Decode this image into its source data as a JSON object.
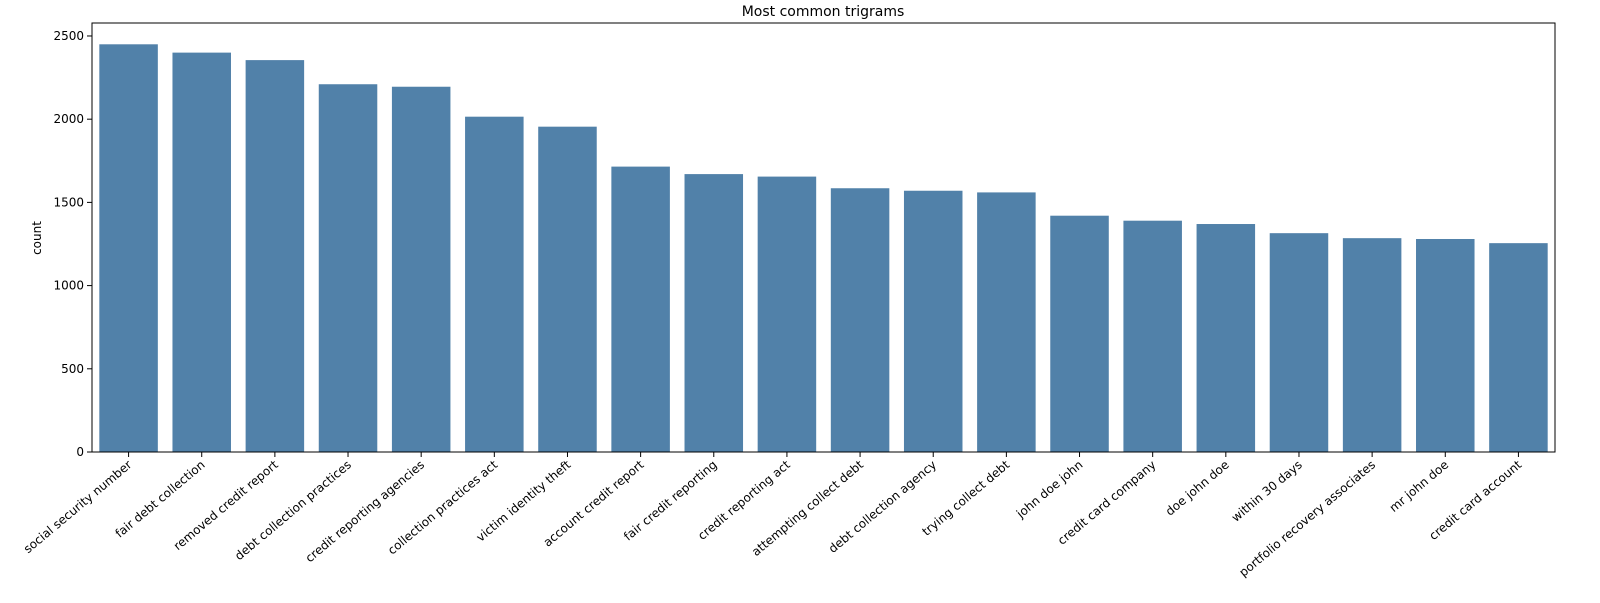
{
  "chart_data": {
    "type": "bar",
    "title": "Most common trigrams",
    "y_label": "count",
    "categories": [
      "social security number",
      "fair debt collection",
      "removed credit report",
      "debt collection practices",
      "credit reporting agencies",
      "collection practices act",
      "victim identity theft",
      "account credit report",
      "fair credit reporting",
      "credit reporting act",
      "attempting collect debt",
      "debt collection agency",
      "trying collect debt",
      "john doe john",
      "credit card company",
      "doe john doe",
      "within 30 days",
      "portfolio recovery associates",
      "mr john doe",
      "credit card account"
    ],
    "values": [
      2450,
      2400,
      2355,
      2210,
      2195,
      2015,
      1955,
      1715,
      1670,
      1655,
      1585,
      1570,
      1560,
      1420,
      1390,
      1370,
      1315,
      1285,
      1280,
      1255
    ],
    "color": "#5181a9",
    "ylim": [
      0,
      2578
    ],
    "yticks": [
      0,
      500,
      1000,
      1500,
      2000,
      2500
    ]
  }
}
